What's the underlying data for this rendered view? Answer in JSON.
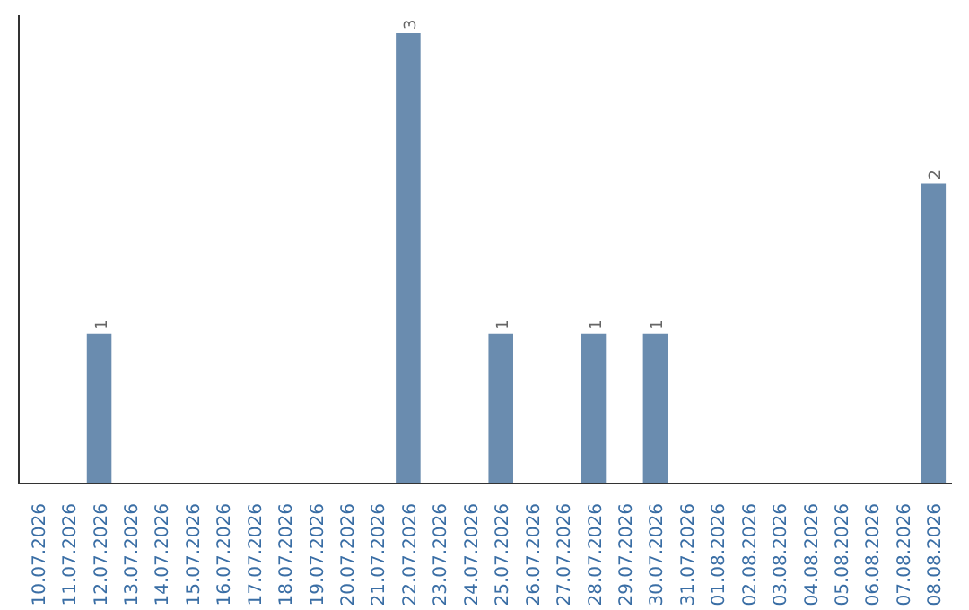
{
  "chart_data": {
    "type": "bar",
    "categories": [
      "10.07.2026",
      "11.07.2026",
      "12.07.2026",
      "13.07.2026",
      "14.07.2026",
      "15.07.2026",
      "16.07.2026",
      "17.07.2026",
      "18.07.2026",
      "19.07.2026",
      "20.07.2026",
      "21.07.2026",
      "22.07.2026",
      "23.07.2026",
      "24.07.2026",
      "25.07.2026",
      "26.07.2026",
      "27.07.2026",
      "28.07.2026",
      "29.07.2026",
      "30.07.2026",
      "31.07.2026",
      "01.08.2026",
      "02.08.2026",
      "03.08.2026",
      "04.08.2026",
      "05.08.2026",
      "06.08.2026",
      "07.08.2026",
      "08.08.2026"
    ],
    "values": [
      0,
      0,
      1,
      0,
      0,
      0,
      0,
      0,
      0,
      0,
      0,
      0,
      3,
      0,
      0,
      1,
      0,
      0,
      1,
      0,
      1,
      0,
      0,
      0,
      0,
      0,
      0,
      0,
      0,
      2
    ],
    "value_labels": [
      null,
      null,
      "1",
      null,
      null,
      null,
      null,
      null,
      null,
      null,
      null,
      null,
      "3",
      null,
      null,
      "1",
      null,
      null,
      "1",
      null,
      "1",
      null,
      null,
      null,
      null,
      null,
      null,
      null,
      null,
      "2"
    ],
    "color": "#6a8caf",
    "grid": false,
    "tick_labels": "x"
  }
}
